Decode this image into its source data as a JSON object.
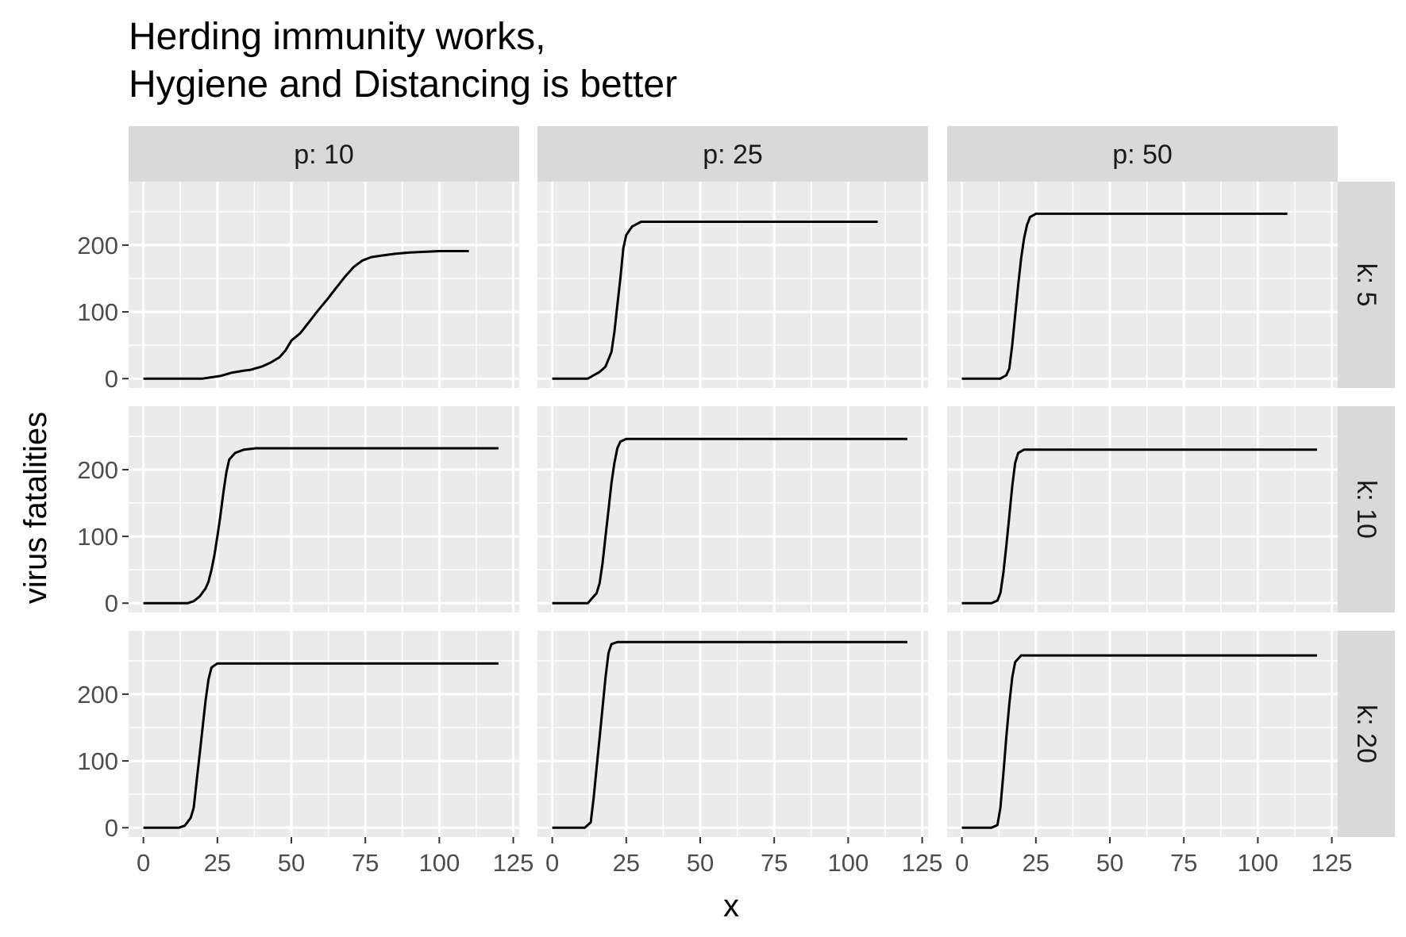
{
  "chart_data": {
    "type": "line",
    "title_lines": [
      "Herding immunity works,",
      "Hygiene and Distancing is better"
    ],
    "xlabel": "x",
    "ylabel": "virus fatalities",
    "xlim": [
      -5,
      127
    ],
    "ylim": [
      -14,
      295
    ],
    "x_ticks": [
      0,
      25,
      50,
      75,
      100,
      125
    ],
    "y_ticks": [
      0,
      100,
      200
    ],
    "grid": true,
    "facet_cols": [
      "p: 10",
      "p: 25",
      "p: 50"
    ],
    "facet_rows": [
      "k: 5",
      "k: 10",
      "k: 20"
    ],
    "panels": [
      {
        "row": 0,
        "col": 0,
        "points": [
          [
            0,
            0
          ],
          [
            20,
            0
          ],
          [
            23,
            2
          ],
          [
            26,
            4
          ],
          [
            30,
            9
          ],
          [
            34,
            12
          ],
          [
            36,
            13
          ],
          [
            40,
            18
          ],
          [
            43,
            24
          ],
          [
            46,
            32
          ],
          [
            48,
            42
          ],
          [
            50,
            57
          ],
          [
            53,
            68
          ],
          [
            56,
            85
          ],
          [
            59,
            102
          ],
          [
            62,
            118
          ],
          [
            65,
            135
          ],
          [
            68,
            152
          ],
          [
            71,
            167
          ],
          [
            74,
            177
          ],
          [
            77,
            182
          ],
          [
            80,
            184
          ],
          [
            85,
            187
          ],
          [
            90,
            189
          ],
          [
            100,
            191
          ],
          [
            110,
            191
          ]
        ]
      },
      {
        "row": 0,
        "col": 1,
        "points": [
          [
            0,
            0
          ],
          [
            12,
            0
          ],
          [
            14,
            5
          ],
          [
            16,
            10
          ],
          [
            18,
            18
          ],
          [
            20,
            40
          ],
          [
            21,
            70
          ],
          [
            22,
            110
          ],
          [
            23,
            150
          ],
          [
            24,
            195
          ],
          [
            25,
            215
          ],
          [
            27,
            228
          ],
          [
            30,
            235
          ],
          [
            60,
            235
          ],
          [
            110,
            235
          ]
        ]
      },
      {
        "row": 0,
        "col": 2,
        "points": [
          [
            0,
            0
          ],
          [
            13,
            0
          ],
          [
            15,
            5
          ],
          [
            16,
            15
          ],
          [
            17,
            50
          ],
          [
            18,
            95
          ],
          [
            19,
            140
          ],
          [
            20,
            180
          ],
          [
            21,
            210
          ],
          [
            22,
            230
          ],
          [
            23,
            242
          ],
          [
            25,
            247
          ],
          [
            60,
            247
          ],
          [
            110,
            247
          ]
        ]
      },
      {
        "row": 1,
        "col": 0,
        "points": [
          [
            0,
            0
          ],
          [
            15,
            0
          ],
          [
            17,
            3
          ],
          [
            19,
            10
          ],
          [
            21,
            22
          ],
          [
            22,
            32
          ],
          [
            23,
            50
          ],
          [
            24,
            72
          ],
          [
            25,
            100
          ],
          [
            26,
            130
          ],
          [
            27,
            165
          ],
          [
            28,
            195
          ],
          [
            29,
            215
          ],
          [
            31,
            225
          ],
          [
            34,
            230
          ],
          [
            38,
            232
          ],
          [
            120,
            232
          ]
        ]
      },
      {
        "row": 1,
        "col": 1,
        "points": [
          [
            0,
            0
          ],
          [
            12,
            0
          ],
          [
            13,
            5
          ],
          [
            15,
            15
          ],
          [
            16,
            30
          ],
          [
            17,
            60
          ],
          [
            18,
            100
          ],
          [
            19,
            140
          ],
          [
            20,
            180
          ],
          [
            21,
            210
          ],
          [
            22,
            232
          ],
          [
            23,
            242
          ],
          [
            25,
            246
          ],
          [
            60,
            246
          ],
          [
            120,
            246
          ]
        ]
      },
      {
        "row": 1,
        "col": 2,
        "points": [
          [
            0,
            0
          ],
          [
            10,
            0
          ],
          [
            12,
            4
          ],
          [
            13,
            15
          ],
          [
            14,
            45
          ],
          [
            15,
            85
          ],
          [
            16,
            130
          ],
          [
            17,
            175
          ],
          [
            18,
            210
          ],
          [
            19,
            225
          ],
          [
            21,
            230
          ],
          [
            60,
            230
          ],
          [
            120,
            230
          ]
        ]
      },
      {
        "row": 2,
        "col": 0,
        "points": [
          [
            0,
            0
          ],
          [
            12,
            0
          ],
          [
            14,
            3
          ],
          [
            16,
            15
          ],
          [
            17,
            30
          ],
          [
            18,
            70
          ],
          [
            19,
            110
          ],
          [
            20,
            150
          ],
          [
            21,
            190
          ],
          [
            22,
            222
          ],
          [
            23,
            240
          ],
          [
            25,
            246
          ],
          [
            60,
            246
          ],
          [
            120,
            246
          ]
        ]
      },
      {
        "row": 2,
        "col": 1,
        "points": [
          [
            0,
            0
          ],
          [
            11,
            0
          ],
          [
            13,
            8
          ],
          [
            14,
            45
          ],
          [
            15,
            90
          ],
          [
            16,
            135
          ],
          [
            17,
            180
          ],
          [
            18,
            225
          ],
          [
            19,
            262
          ],
          [
            20,
            275
          ],
          [
            22,
            278
          ],
          [
            60,
            278
          ],
          [
            120,
            278
          ]
        ]
      },
      {
        "row": 2,
        "col": 2,
        "points": [
          [
            0,
            0
          ],
          [
            10,
            0
          ],
          [
            12,
            4
          ],
          [
            13,
            30
          ],
          [
            14,
            80
          ],
          [
            15,
            135
          ],
          [
            16,
            185
          ],
          [
            17,
            225
          ],
          [
            18,
            248
          ],
          [
            20,
            258
          ],
          [
            60,
            258
          ],
          [
            120,
            258
          ]
        ]
      }
    ]
  }
}
